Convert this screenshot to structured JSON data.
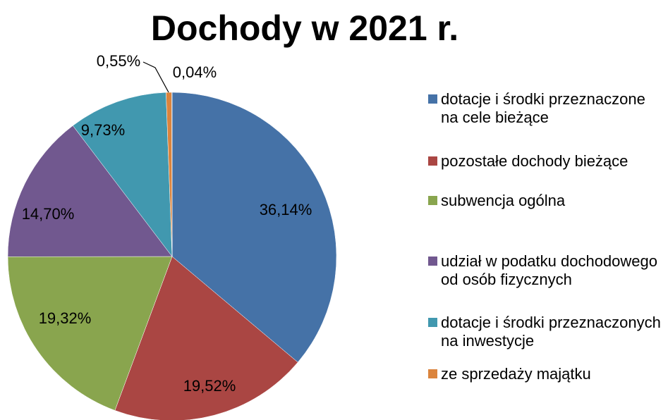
{
  "chart_data": {
    "type": "pie",
    "title": "Dochody w 2021 r.",
    "categories": [
      "dotacje i środki przeznaczone na cele bieżące",
      "pozostałe dochody bieżące",
      "subwencja ogólna",
      "udział w podatku dochodowego od osób fizycznych",
      "dotacje i środki przeznaczonych na inwestycje",
      "ze sprzedaży majątku",
      null
    ],
    "values": [
      36.14,
      19.52,
      19.32,
      14.7,
      9.73,
      0.55,
      0.04
    ],
    "value_labels": [
      "36,14%",
      "19,52%",
      "19,32%",
      "14,70%",
      "9,73%",
      "0,55%",
      "0,04%"
    ],
    "colors": [
      "#4572a7",
      "#aa4643",
      "#89a54e",
      "#71588f",
      "#4198af",
      "#db843d",
      "#2c4d75"
    ]
  }
}
